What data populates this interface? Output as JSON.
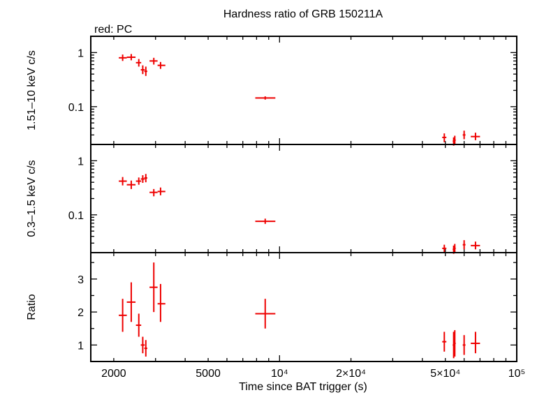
{
  "title": "Hardness ratio of GRB 150211A",
  "subtitle": "red: PC",
  "xlabel": "Time since BAT trigger (s)",
  "x_ticks": [
    {
      "value": 2000,
      "label": "2000"
    },
    {
      "value": 5000,
      "label": "5000"
    },
    {
      "value": 10000,
      "label": "10⁴"
    },
    {
      "value": 20000,
      "label": "2×10⁴"
    },
    {
      "value": 50000,
      "label": "5×10⁴"
    },
    {
      "value": 100000,
      "label": "10⁵"
    }
  ],
  "series_color": "#ee0000",
  "chart_data": [
    {
      "type": "scatter",
      "panel": "top",
      "ylabel": "1.51–10 keV c/s",
      "yscale": "log",
      "xscale": "log",
      "xlim": [
        1600,
        100000
      ],
      "ylim": [
        0.02,
        2.0
      ],
      "y_ticks": [
        {
          "value": 0.1,
          "label": "0.1"
        },
        {
          "value": 1,
          "label": "1"
        }
      ],
      "points": [
        {
          "x": 2180,
          "xerr": [
            2100,
            2270
          ],
          "y": 0.8,
          "yerr": [
            0.7,
            0.92
          ]
        },
        {
          "x": 2370,
          "xerr": [
            2270,
            2470
          ],
          "y": 0.82,
          "yerr": [
            0.72,
            0.94
          ]
        },
        {
          "x": 2550,
          "xerr": [
            2480,
            2610
          ],
          "y": 0.65,
          "yerr": [
            0.55,
            0.76
          ]
        },
        {
          "x": 2650,
          "xerr": [
            2600,
            2700
          ],
          "y": 0.48,
          "yerr": [
            0.4,
            0.58
          ]
        },
        {
          "x": 2730,
          "xerr": [
            2690,
            2770
          ],
          "y": 0.45,
          "yerr": [
            0.37,
            0.55
          ]
        },
        {
          "x": 2950,
          "xerr": [
            2830,
            3060
          ],
          "y": 0.7,
          "yerr": [
            0.6,
            0.8
          ]
        },
        {
          "x": 3150,
          "xerr": [
            3060,
            3300
          ],
          "y": 0.58,
          "yerr": [
            0.5,
            0.67
          ]
        },
        {
          "x": 8700,
          "xerr": [
            7900,
            9600
          ],
          "y": 0.145,
          "yerr": [
            0.135,
            0.155
          ]
        },
        {
          "x": 49500,
          "xerr": [
            48500,
            50500
          ],
          "y": 0.027,
          "yerr": [
            0.022,
            0.032
          ]
        },
        {
          "x": 54200,
          "xerr": [
            53700,
            54700
          ],
          "y": 0.023,
          "yerr": [
            0.019,
            0.027
          ]
        },
        {
          "x": 54800,
          "xerr": [
            54300,
            55300
          ],
          "y": 0.024,
          "yerr": [
            0.02,
            0.029
          ]
        },
        {
          "x": 60000,
          "xerr": [
            59200,
            60800
          ],
          "y": 0.03,
          "yerr": [
            0.025,
            0.036
          ]
        },
        {
          "x": 67000,
          "xerr": [
            64000,
            70000
          ],
          "y": 0.028,
          "yerr": [
            0.024,
            0.033
          ]
        }
      ]
    },
    {
      "type": "scatter",
      "panel": "middle",
      "ylabel": "0.3–1.5 keV c/s",
      "yscale": "log",
      "xscale": "log",
      "xlim": [
        1600,
        100000
      ],
      "ylim": [
        0.02,
        2.0
      ],
      "y_ticks": [
        {
          "value": 0.1,
          "label": "0.1"
        },
        {
          "value": 1,
          "label": "1"
        }
      ],
      "points": [
        {
          "x": 2180,
          "xerr": [
            2100,
            2270
          ],
          "y": 0.42,
          "yerr": [
            0.35,
            0.5
          ]
        },
        {
          "x": 2370,
          "xerr": [
            2270,
            2470
          ],
          "y": 0.36,
          "yerr": [
            0.3,
            0.43
          ]
        },
        {
          "x": 2550,
          "xerr": [
            2480,
            2610
          ],
          "y": 0.42,
          "yerr": [
            0.36,
            0.49
          ]
        },
        {
          "x": 2650,
          "xerr": [
            2600,
            2700
          ],
          "y": 0.46,
          "yerr": [
            0.39,
            0.54
          ]
        },
        {
          "x": 2730,
          "xerr": [
            2690,
            2770
          ],
          "y": 0.48,
          "yerr": [
            0.4,
            0.57
          ]
        },
        {
          "x": 2950,
          "xerr": [
            2830,
            3060
          ],
          "y": 0.26,
          "yerr": [
            0.22,
            0.3
          ]
        },
        {
          "x": 3150,
          "xerr": [
            3060,
            3300
          ],
          "y": 0.27,
          "yerr": [
            0.23,
            0.32
          ]
        },
        {
          "x": 8700,
          "xerr": [
            7900,
            9600
          ],
          "y": 0.076,
          "yerr": [
            0.068,
            0.085
          ]
        },
        {
          "x": 49500,
          "xerr": [
            48500,
            50500
          ],
          "y": 0.024,
          "yerr": [
            0.02,
            0.028
          ]
        },
        {
          "x": 54200,
          "xerr": [
            53700,
            54700
          ],
          "y": 0.023,
          "yerr": [
            0.019,
            0.027
          ]
        },
        {
          "x": 54800,
          "xerr": [
            54300,
            55300
          ],
          "y": 0.024,
          "yerr": [
            0.02,
            0.029
          ]
        },
        {
          "x": 60000,
          "xerr": [
            59200,
            60800
          ],
          "y": 0.028,
          "yerr": [
            0.023,
            0.034
          ]
        },
        {
          "x": 67000,
          "xerr": [
            64000,
            70000
          ],
          "y": 0.027,
          "yerr": [
            0.023,
            0.032
          ]
        }
      ]
    },
    {
      "type": "scatter",
      "panel": "bottom",
      "ylabel": "Ratio",
      "yscale": "linear",
      "xscale": "log",
      "xlim": [
        1600,
        100000
      ],
      "ylim": [
        0.5,
        3.8
      ],
      "y_ticks": [
        {
          "value": 1,
          "label": "1"
        },
        {
          "value": 2,
          "label": "2"
        },
        {
          "value": 3,
          "label": "3"
        }
      ],
      "points": [
        {
          "x": 2180,
          "xerr": [
            2100,
            2270
          ],
          "y": 1.9,
          "yerr": [
            1.4,
            2.4
          ]
        },
        {
          "x": 2370,
          "xerr": [
            2270,
            2470
          ],
          "y": 2.3,
          "yerr": [
            1.7,
            2.9
          ]
        },
        {
          "x": 2550,
          "xerr": [
            2480,
            2610
          ],
          "y": 1.6,
          "yerr": [
            1.25,
            1.95
          ]
        },
        {
          "x": 2650,
          "xerr": [
            2600,
            2700
          ],
          "y": 1.0,
          "yerr": [
            0.75,
            1.25
          ]
        },
        {
          "x": 2730,
          "xerr": [
            2690,
            2770
          ],
          "y": 0.9,
          "yerr": [
            0.65,
            1.15
          ]
        },
        {
          "x": 2950,
          "xerr": [
            2830,
            3060
          ],
          "y": 2.75,
          "yerr": [
            2.0,
            3.5
          ]
        },
        {
          "x": 3150,
          "xerr": [
            3060,
            3300
          ],
          "y": 2.25,
          "yerr": [
            1.7,
            2.85
          ]
        },
        {
          "x": 8700,
          "xerr": [
            7900,
            9600
          ],
          "y": 1.95,
          "yerr": [
            1.5,
            2.4
          ]
        },
        {
          "x": 49500,
          "xerr": [
            48500,
            50500
          ],
          "y": 1.1,
          "yerr": [
            0.8,
            1.4
          ]
        },
        {
          "x": 54200,
          "xerr": [
            53700,
            54700
          ],
          "y": 1.0,
          "yerr": [
            0.6,
            1.4
          ]
        },
        {
          "x": 54800,
          "xerr": [
            54300,
            55300
          ],
          "y": 1.05,
          "yerr": [
            0.65,
            1.45
          ]
        },
        {
          "x": 60000,
          "xerr": [
            59200,
            60800
          ],
          "y": 1.0,
          "yerr": [
            0.7,
            1.3
          ]
        },
        {
          "x": 67000,
          "xerr": [
            64000,
            70000
          ],
          "y": 1.05,
          "yerr": [
            0.75,
            1.4
          ]
        }
      ]
    }
  ]
}
